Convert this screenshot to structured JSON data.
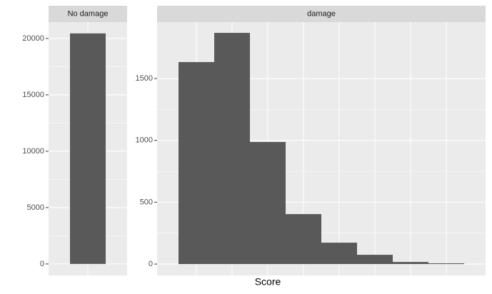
{
  "chart_data": {
    "type": "bar",
    "xlabel": "Score",
    "color": "#595959",
    "grid": true,
    "panels": [
      {
        "title": "No damage",
        "categories": [
          null
        ],
        "values": [
          20450
        ],
        "ylim": [
          -1020,
          21450
        ],
        "yticks": [
          0,
          5000,
          10000,
          15000,
          20000
        ]
      },
      {
        "title": "damage",
        "categories": [
          null,
          null,
          null,
          null,
          null,
          null,
          null,
          null
        ],
        "values": [
          1633,
          1869,
          987,
          404,
          173,
          75,
          17,
          6
        ],
        "ylim": [
          -92,
          1956
        ],
        "yticks": [
          0,
          500,
          1000,
          1500
        ]
      }
    ]
  }
}
